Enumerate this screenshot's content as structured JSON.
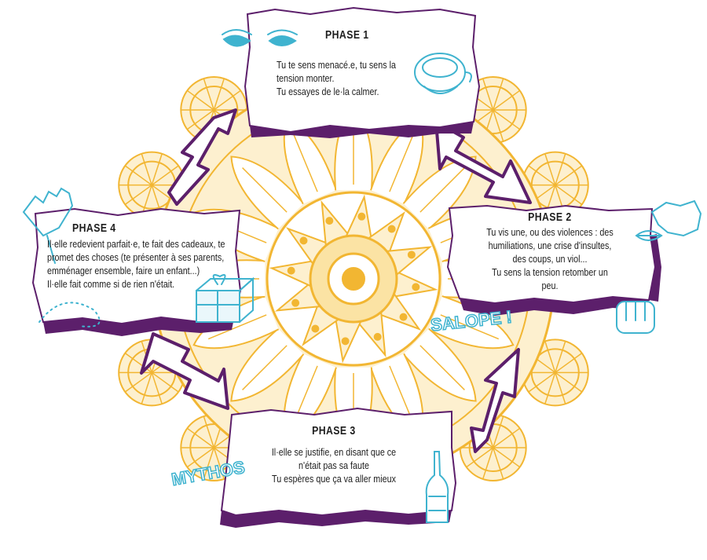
{
  "phases": [
    {
      "title": "PHASE 1",
      "lines": [
        "Tu te sens menacé.e, tu sens la",
        "tension monter.",
        "Tu essayes de le·la calmer."
      ]
    },
    {
      "title": "PHASE 2",
      "lines": [
        "Tu vis une, ou des violences : des",
        "humiliations, une crise d'insultes,",
        "des coups, un viol...",
        "Tu sens la tension retomber un",
        "peu."
      ]
    },
    {
      "title": "PHASE 3",
      "lines": [
        "Il·elle se justifie, en disant que ce",
        "n'était pas sa faute",
        "Tu espères que ça va aller mieux"
      ]
    },
    {
      "title": "PHASE 4",
      "lines": [
        "Il·elle redevient parfait·e, te fait des cadeaux, te",
        "promet des choses (te présenter à ses parents,",
        "emménager ensemble, faire un enfant...)",
        "Il·elle fait comme si de rien n'était."
      ]
    }
  ],
  "tags": {
    "salope": "SALOPE !",
    "mythos": "MYTHOS"
  },
  "colors": {
    "mandala": "#f2b632",
    "paper_edge": "#5c1f6b",
    "doodle": "#3fb3cf",
    "text": "#1e1e1e"
  },
  "icons": [
    "eyes-icon",
    "teacup-icon",
    "waving-hand-icon",
    "gift-box-icon",
    "mouth-icon",
    "speech-bubble-icon",
    "fist-icon",
    "bottle-icon",
    "cycle-arrow-icon"
  ]
}
